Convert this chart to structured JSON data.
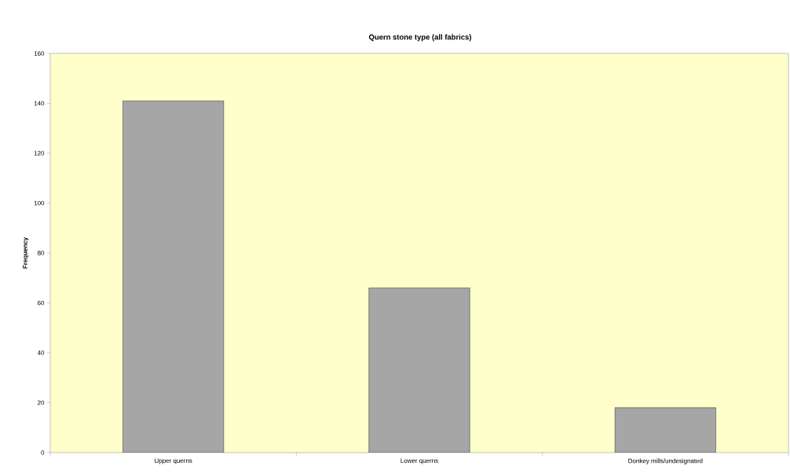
{
  "chart_data": {
    "type": "bar",
    "title": "Quern stone type (all fabrics)",
    "ylabel": "Frequency",
    "categories": [
      "Upper querns",
      "Lower querns",
      "Donkey mills/undesignated"
    ],
    "values": [
      141,
      66,
      18
    ],
    "color": "#a6a6a6",
    "ylim": [
      0,
      160
    ],
    "yticks": [
      0,
      20,
      40,
      60,
      80,
      100,
      120,
      140,
      160
    ]
  }
}
